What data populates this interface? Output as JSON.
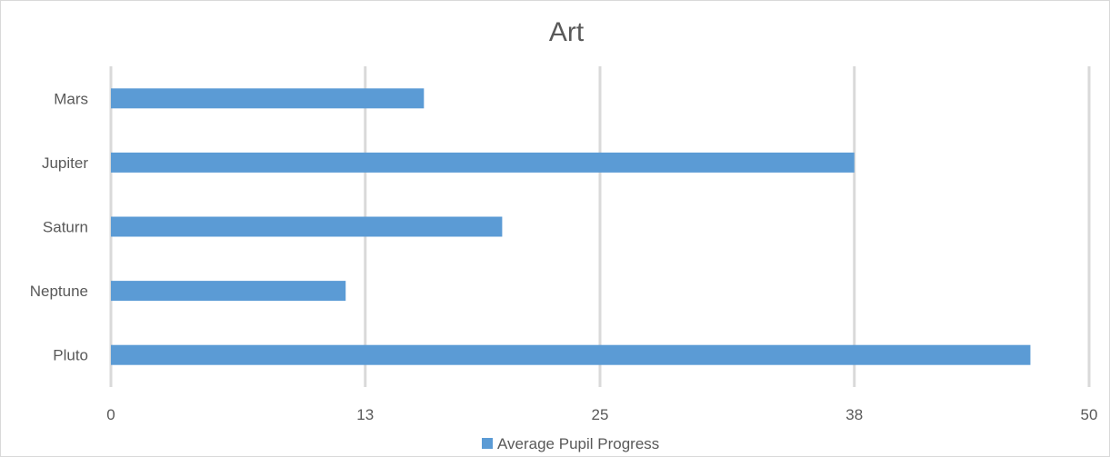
{
  "chart_data": {
    "type": "bar",
    "orientation": "horizontal",
    "title": "Art",
    "xlabel": "",
    "ylabel": "",
    "categories": [
      "Mars",
      "Jupiter",
      "Saturn",
      "Neptune",
      "Pluto"
    ],
    "series": [
      {
        "name": "Average Pupil Progress",
        "color": "#5b9bd5",
        "values": [
          16,
          38,
          20,
          12,
          47
        ]
      }
    ],
    "x_ticks": [
      "0",
      "13",
      "25",
      "38",
      "50"
    ],
    "xlim": [
      0,
      50
    ],
    "grid": true,
    "legend_position": "bottom"
  }
}
